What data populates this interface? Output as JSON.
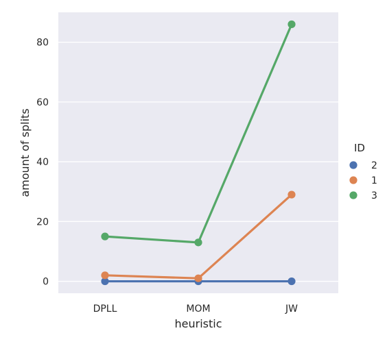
{
  "chart_data": {
    "type": "line",
    "xlabel": "heuristic",
    "ylabel": "amount of splits",
    "categories": [
      "DPLL",
      "MOM",
      "JW"
    ],
    "ylim": [
      -4,
      90
    ],
    "yticks": [
      0,
      20,
      40,
      60,
      80
    ],
    "grid": true,
    "legend": {
      "title": "ID",
      "position": "right"
    },
    "series": [
      {
        "name": "2",
        "color": "#4c72b0",
        "values": [
          0,
          0,
          0
        ]
      },
      {
        "name": "1",
        "color": "#dd8452",
        "values": [
          2,
          1,
          29
        ]
      },
      {
        "name": "3",
        "color": "#55a868",
        "values": [
          15,
          13,
          86
        ]
      }
    ]
  }
}
